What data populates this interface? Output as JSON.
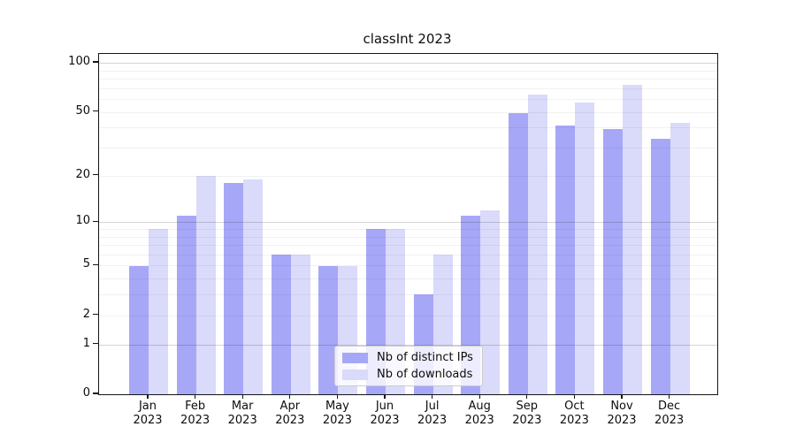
{
  "title": "classInt 2023",
  "colors": {
    "ips_bar": "#a7a7f8",
    "downloads_bar": "#dadafa",
    "major_grid": "#c9c9c9",
    "minor_grid": "#ececec",
    "spine": "#141414"
  },
  "legend": {
    "items": [
      {
        "label": "Nb of distinct IPs",
        "color_key": "ips_bar"
      },
      {
        "label": "Nb of downloads",
        "color_key": "downloads_bar"
      }
    ]
  },
  "chart_data": {
    "type": "bar",
    "title": "classInt 2023",
    "categories": [
      "Jan",
      "Feb",
      "Mar",
      "Apr",
      "May",
      "Jun",
      "Jul",
      "Aug",
      "Sep",
      "Oct",
      "Nov",
      "Dec"
    ],
    "category_year": "2023",
    "series": [
      {
        "name": "Nb of distinct IPs",
        "values": [
          5,
          11,
          18,
          6,
          5,
          9,
          3,
          11,
          49,
          41,
          39,
          34
        ]
      },
      {
        "name": "Nb of downloads",
        "values": [
          9,
          20,
          19,
          6,
          5,
          9,
          6,
          12,
          64,
          57,
          73,
          43
        ]
      }
    ],
    "xlabel": "",
    "ylabel": "",
    "yscale": "log1p",
    "ylim": [
      0,
      113
    ],
    "yticks": [
      {
        "value": 100,
        "label": "100"
      },
      {
        "value": 50,
        "label": "50"
      },
      {
        "value": 20,
        "label": "20"
      },
      {
        "value": 10,
        "label": "10"
      },
      {
        "value": 5,
        "label": "5"
      },
      {
        "value": 2,
        "label": "2"
      },
      {
        "value": 1,
        "label": "1"
      },
      {
        "value": 0,
        "label": "0"
      }
    ],
    "major_gridlines": [
      1,
      10,
      100
    ],
    "minor_gridlines": [
      2,
      3,
      4,
      5,
      6,
      7,
      8,
      9,
      20,
      30,
      40,
      50,
      60,
      70,
      80,
      90
    ],
    "grid": true,
    "legend_position": "lower center"
  }
}
